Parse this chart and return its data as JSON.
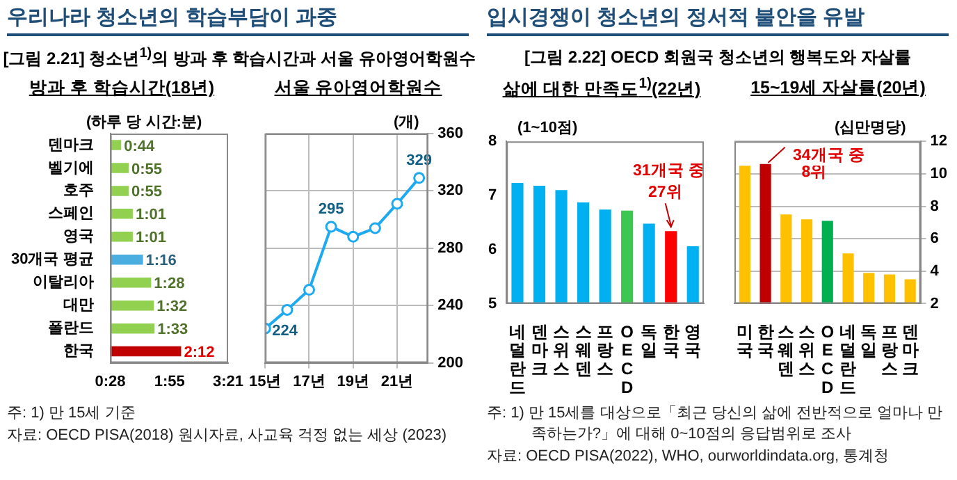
{
  "chart_data": [
    {
      "type": "bar",
      "orientation": "horizontal",
      "title": "방과 후 학습시간(18년)",
      "xlabel": "(하루 당 시간:분)",
      "categories": [
        "덴마크",
        "벨기에",
        "호주",
        "스페인",
        "영국",
        "30개국 평균",
        "이탈리아",
        "대만",
        "폴란드",
        "한국"
      ],
      "values": [
        44,
        55,
        55,
        61,
        61,
        76,
        88,
        92,
        93,
        132
      ],
      "value_labels": [
        "0:44",
        "0:55",
        "0:55",
        "1:01",
        "1:01",
        "1:16",
        "1:28",
        "1:32",
        "1:33",
        "2:12"
      ],
      "colors": [
        "#92d050",
        "#92d050",
        "#92d050",
        "#92d050",
        "#92d050",
        "#4aaee0",
        "#92d050",
        "#92d050",
        "#92d050",
        "#c00000"
      ],
      "xlim": [
        28,
        201
      ],
      "xticks": [
        {
          "value": 28,
          "label": "0:28"
        },
        {
          "value": 115,
          "label": "1:55"
        },
        {
          "value": 201,
          "label": "3:21"
        }
      ],
      "grid": false,
      "annotations": [
        "우리나라 청소년의 학습부담이 과중",
        "[그림 2.21] 청소년$^{1)}$의 방과 후 학습시간과 서울 유아영어학원수",
        "주: 1) 만 15세 기준",
        "자료: OECD PISA(2018) 원시자료, 사교육 걱정 없는 세상 (2023)"
      ]
    },
    {
      "type": "line",
      "title": "서울 유아영어학원수",
      "ylabel": "(개)",
      "x": [
        15,
        16,
        17,
        18,
        19,
        20,
        21,
        22
      ],
      "values": [
        224,
        237,
        251,
        295,
        288,
        294,
        311,
        329
      ],
      "value_labels": [
        "224",
        null,
        null,
        "295",
        null,
        null,
        null,
        "329"
      ],
      "color": "#1eaaf0",
      "xlim": [
        15,
        22.4
      ],
      "xticks": [
        {
          "value": 15,
          "label": "15년"
        },
        {
          "value": 17,
          "label": "17년"
        },
        {
          "value": 19,
          "label": "19년"
        },
        {
          "value": 21,
          "label": "21년"
        }
      ],
      "ylim": [
        200,
        360
      ],
      "yticks": [
        200,
        240,
        280,
        320,
        360
      ],
      "grid": true,
      "marker": "circle"
    },
    {
      "type": "bar",
      "title": "삶에 대한 만족도$^{1)}$(22년)",
      "ylabel": "(1~10점)",
      "categories": [
        "네덜란드",
        "덴마크",
        "스위스",
        "스웨덴",
        "프랑스",
        "OECD",
        "독일",
        "한국",
        "영국"
      ],
      "values": [
        7.23,
        7.18,
        7.1,
        6.87,
        6.74,
        6.72,
        6.48,
        6.34,
        6.06
      ],
      "colors": [
        "#00b0f0",
        "#00b0f0",
        "#00b0f0",
        "#00b0f0",
        "#00b0f0",
        "#3cc850",
        "#00b0f0",
        "#ff0000",
        "#00b0f0"
      ],
      "ylim": [
        5,
        8
      ],
      "yticks": [
        5,
        6,
        7,
        8
      ],
      "grid": false,
      "annotations": [
        "입시경쟁이 청소년의 정서적 불안을 유발",
        "[그림 2.22] OECD 회원국 청소년의 행복도와 자살률",
        "31개국 중",
        {
          "text": "27위",
          "x": "한국",
          "y": 6.34
        },
        "주: 1) 만 15세를 대상으로「최근 당신의 삶에 전반적으로 얼마나 만족하는가?」에 대해 0~10점의 응답범위로 조사",
        "자료: OECD PISA(2022), WHO, ourworldindata.org, 통계청"
      ]
    },
    {
      "type": "bar",
      "title": "15~19세 자살률(20년)",
      "ylabel": "(십만명당)",
      "categories": [
        "미국",
        "한국",
        "스웨덴",
        "스위스",
        "OECD",
        "네덜란드",
        "독일",
        "프랑스",
        "덴마크"
      ],
      "values": [
        10.5,
        10.6,
        7.5,
        7.2,
        7.1,
        5.1,
        3.9,
        3.8,
        3.5
      ],
      "colors": [
        "#ffc000",
        "#c00000",
        "#ffc000",
        "#ffc000",
        "#00b050",
        "#ffc000",
        "#ffc000",
        "#ffc000",
        "#ffc000"
      ],
      "ylim": [
        2,
        12
      ],
      "yticks": [
        2,
        4,
        6,
        8,
        10,
        12
      ],
      "grid": "y",
      "annotations": [
        "34개국 중",
        {
          "text": "8위",
          "x": "한국",
          "y": 10.6
        }
      ]
    }
  ]
}
